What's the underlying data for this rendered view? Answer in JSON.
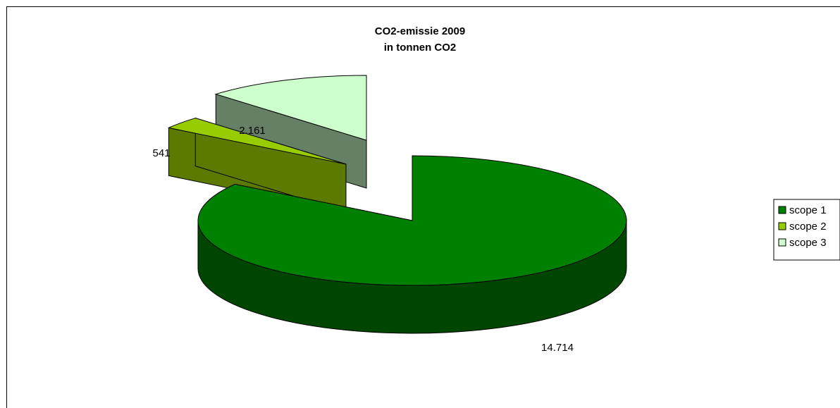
{
  "chart_data": {
    "type": "pie",
    "title": "CO2-emissie 2009",
    "subtitle": "in tonnen CO2",
    "categories": [
      "scope 1",
      "scope 2",
      "scope 3"
    ],
    "values": [
      14714,
      541,
      2161
    ],
    "data_labels": [
      "14.714",
      "541",
      "2.161"
    ],
    "colors": {
      "scope 1": "#008000",
      "scope 2": "#99cc00",
      "scope 3": "#ccffcc"
    },
    "exploded": true,
    "three_d": true,
    "legend_position": "right"
  }
}
